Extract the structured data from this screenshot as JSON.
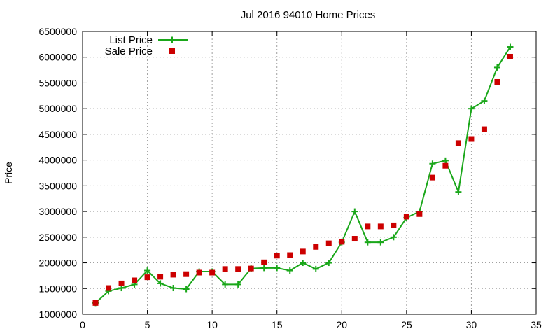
{
  "chart_data": {
    "type": "line",
    "title": "Jul 2016 94010 Home Prices",
    "xlabel": "",
    "ylabel": "Price",
    "xlim": [
      0,
      35
    ],
    "ylim": [
      1000000,
      6500000
    ],
    "xticks": [
      0,
      5,
      10,
      15,
      20,
      25,
      30,
      35
    ],
    "yticks": [
      1000000,
      1500000,
      2000000,
      2500000,
      3000000,
      3500000,
      4000000,
      4500000,
      5000000,
      5500000,
      6000000,
      6500000
    ],
    "grid": true,
    "legend": "top-left",
    "series": [
      {
        "name": "List Price",
        "style": "line+marker",
        "marker": "plus",
        "color": "#1aa71a",
        "x": [
          1,
          2,
          3,
          4,
          5,
          6,
          7,
          8,
          9,
          10,
          11,
          12,
          13,
          14,
          15,
          16,
          17,
          18,
          19,
          20,
          21,
          22,
          23,
          24,
          25,
          26,
          27,
          28,
          29,
          30,
          31,
          32,
          33
        ],
        "y": [
          1220000,
          1450000,
          1510000,
          1580000,
          1850000,
          1600000,
          1510000,
          1490000,
          1830000,
          1830000,
          1580000,
          1580000,
          1890000,
          1900000,
          1900000,
          1850000,
          2000000,
          1880000,
          2000000,
          2400000,
          3000000,
          2400000,
          2400000,
          2500000,
          2880000,
          3000000,
          3930000,
          3990000,
          3380000,
          5000000,
          5150000,
          5800000,
          6200000
        ]
      },
      {
        "name": "Sale Price",
        "style": "marker",
        "marker": "square",
        "color": "#cc0000",
        "x": [
          1,
          2,
          3,
          4,
          5,
          6,
          7,
          8,
          9,
          10,
          11,
          12,
          13,
          14,
          15,
          16,
          17,
          18,
          19,
          20,
          21,
          22,
          23,
          24,
          25,
          26,
          27,
          28,
          29,
          30,
          31,
          32,
          33
        ],
        "y": [
          1220000,
          1510000,
          1600000,
          1660000,
          1720000,
          1730000,
          1770000,
          1780000,
          1810000,
          1810000,
          1880000,
          1880000,
          1890000,
          2010000,
          2140000,
          2150000,
          2220000,
          2310000,
          2380000,
          2410000,
          2470000,
          2710000,
          2710000,
          2730000,
          2900000,
          2950000,
          3660000,
          3890000,
          4330000,
          4410000,
          4600000,
          5520000,
          6010000
        ]
      }
    ]
  }
}
